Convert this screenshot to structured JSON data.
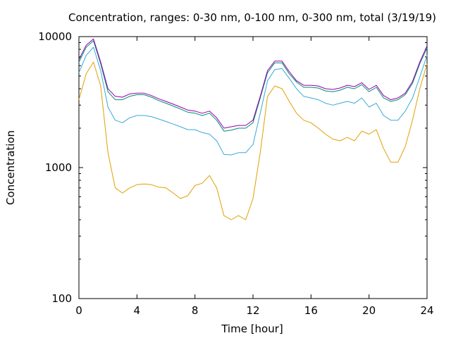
{
  "chart_data": {
    "type": "line",
    "title": "Concentration, ranges: 0-30 nm, 0-100 nm, 0-300 nm, total (3/19/19)",
    "xlabel": "Time [hour]",
    "ylabel": "Concentration",
    "xlim": [
      0,
      24
    ],
    "ylim": [
      100,
      10000
    ],
    "yscale": "log",
    "grid": false,
    "legend": "none",
    "x_ticks": [
      "0",
      "4",
      "8",
      "12",
      "16",
      "20",
      "24"
    ],
    "y_ticks": [
      "100",
      "1000",
      "10000"
    ],
    "x": [
      0,
      0.5,
      1,
      1.5,
      2,
      2.5,
      3,
      3.5,
      4,
      4.5,
      5,
      5.5,
      6,
      6.5,
      7,
      7.5,
      8,
      8.5,
      9,
      9.5,
      10,
      10.5,
      11,
      11.5,
      12,
      12.5,
      13,
      13.5,
      14,
      14.5,
      15,
      15.5,
      16,
      16.5,
      17,
      17.5,
      18,
      18.5,
      19,
      19.5,
      20,
      20.5,
      21,
      21.5,
      22,
      22.5,
      23,
      23.5,
      24
    ],
    "series": [
      {
        "color": "#e0a000",
        "values": [
          3300,
          5200,
          6400,
          4200,
          1300,
          700,
          640,
          700,
          740,
          750,
          740,
          710,
          700,
          640,
          580,
          610,
          730,
          760,
          870,
          700,
          430,
          400,
          430,
          400,
          580,
          1300,
          3500,
          4200,
          4000,
          3200,
          2600,
          2300,
          2200,
          2000,
          1800,
          1650,
          1600,
          1700,
          1600,
          1900,
          1800,
          1950,
          1400,
          1100,
          1100,
          1450,
          2300,
          4000,
          6200
        ]
      },
      {
        "color": "#3aa8d8",
        "values": [
          5300,
          7200,
          8300,
          5500,
          2900,
          2300,
          2200,
          2400,
          2500,
          2500,
          2450,
          2350,
          2250,
          2150,
          2050,
          1950,
          1950,
          1850,
          1800,
          1600,
          1260,
          1250,
          1300,
          1300,
          1500,
          2600,
          4600,
          5600,
          5700,
          4800,
          4000,
          3500,
          3400,
          3300,
          3100,
          3000,
          3100,
          3200,
          3100,
          3400,
          2900,
          3100,
          2500,
          2300,
          2300,
          2700,
          3400,
          4900,
          7200
        ]
      },
      {
        "color": "#008f70",
        "values": [
          6400,
          8300,
          9300,
          6200,
          3800,
          3300,
          3300,
          3500,
          3600,
          3600,
          3450,
          3250,
          3100,
          2950,
          2800,
          2650,
          2600,
          2500,
          2600,
          2300,
          1900,
          1930,
          2000,
          2000,
          2200,
          3400,
          5300,
          6300,
          6300,
          5200,
          4500,
          4100,
          4100,
          4050,
          3850,
          3800,
          3900,
          4100,
          4000,
          4300,
          3800,
          4100,
          3400,
          3200,
          3300,
          3600,
          4400,
          6200,
          8200
        ]
      },
      {
        "color": "#9400b0",
        "values": [
          6700,
          8600,
          9600,
          6400,
          4000,
          3500,
          3450,
          3650,
          3700,
          3700,
          3550,
          3350,
          3200,
          3050,
          2900,
          2750,
          2700,
          2600,
          2700,
          2400,
          2000,
          2050,
          2100,
          2100,
          2300,
          3500,
          5500,
          6500,
          6500,
          5400,
          4600,
          4250,
          4250,
          4200,
          4000,
          3950,
          4050,
          4250,
          4150,
          4450,
          3950,
          4250,
          3550,
          3300,
          3400,
          3700,
          4550,
          6400,
          8500
        ]
      }
    ]
  }
}
